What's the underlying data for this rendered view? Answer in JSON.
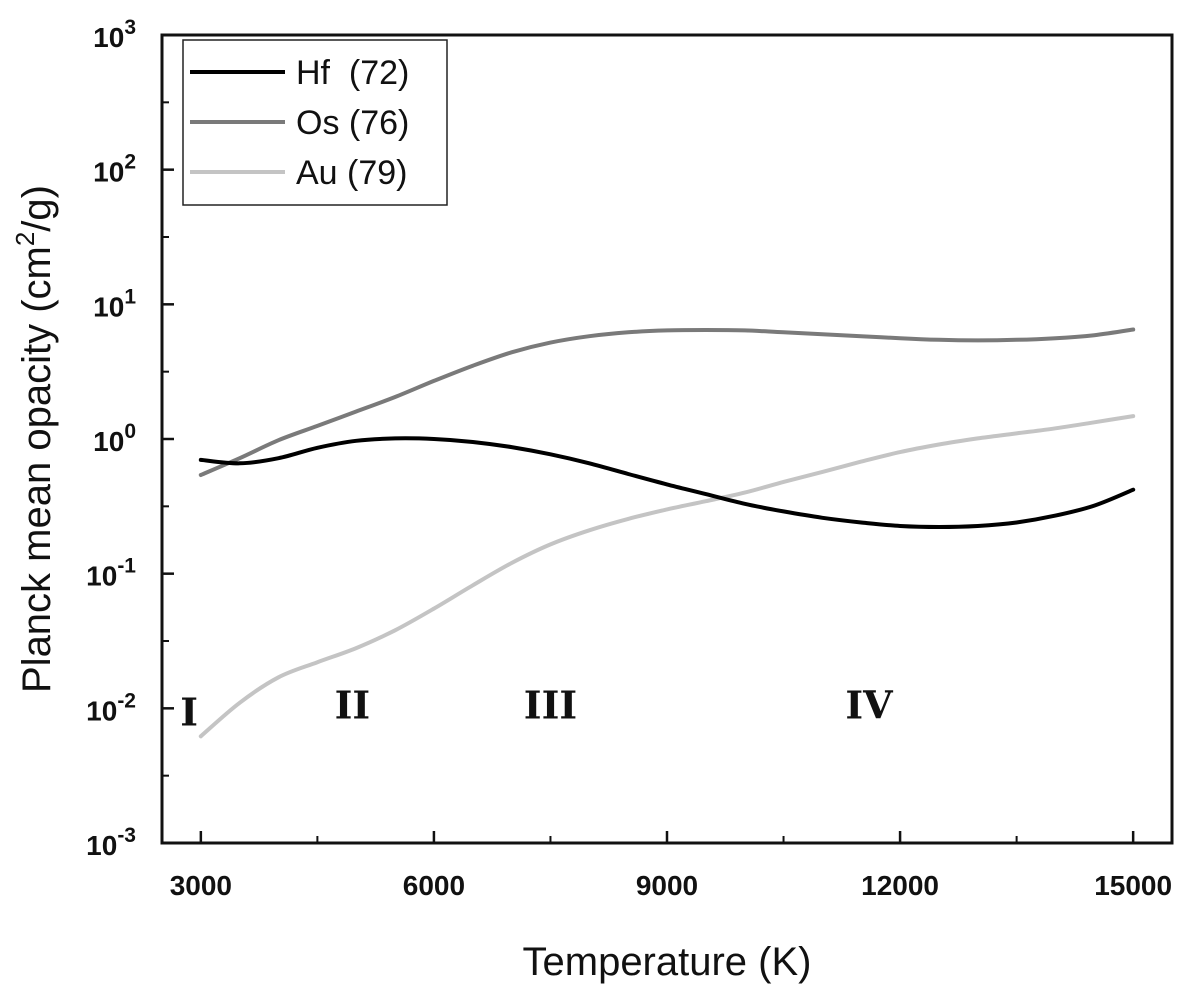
{
  "chart_data": {
    "type": "line",
    "xlabel": "Temperature (K)",
    "ylabel_main": "Planck mean opacity (cm",
    "ylabel_sup": "2",
    "ylabel_tail": "/g)",
    "xlim": [
      2500,
      15500
    ],
    "ylim": [
      0.001,
      1000
    ],
    "yscale": "log",
    "grid": false,
    "legend_position": "top-left",
    "x_ticks": [
      {
        "value": 3000,
        "label": "3000"
      },
      {
        "value": 6000,
        "label": "6000"
      },
      {
        "value": 9000,
        "label": "9000"
      },
      {
        "value": 12000,
        "label": "12000"
      },
      {
        "value": 15000,
        "label": "15000"
      }
    ],
    "y_ticks": [
      {
        "value": 0.001,
        "base": "10",
        "exp": "-3"
      },
      {
        "value": 0.01,
        "base": "10",
        "exp": "-2"
      },
      {
        "value": 0.1,
        "base": "10",
        "exp": "-1"
      },
      {
        "value": 1,
        "base": "10",
        "exp": "0"
      },
      {
        "value": 10,
        "base": "10",
        "exp": "1"
      },
      {
        "value": 100,
        "base": "10",
        "exp": "2"
      },
      {
        "value": 1000,
        "base": "10",
        "exp": "3"
      }
    ],
    "series": [
      {
        "name": "Hf  (72)",
        "color": "#000000",
        "x": [
          3000,
          3500,
          4000,
          4500,
          5000,
          5500,
          6000,
          6500,
          7000,
          7500,
          8000,
          8500,
          9000,
          9500,
          10000,
          10500,
          11000,
          11500,
          12000,
          12500,
          13000,
          13500,
          14000,
          14500,
          15000
        ],
        "y": [
          0.7,
          0.66,
          0.72,
          0.86,
          0.97,
          1.01,
          1.0,
          0.95,
          0.87,
          0.77,
          0.66,
          0.55,
          0.46,
          0.39,
          0.33,
          0.29,
          0.26,
          0.24,
          0.226,
          0.222,
          0.226,
          0.24,
          0.27,
          0.32,
          0.42
        ]
      },
      {
        "name": "Os (76)",
        "color": "#7a7a7a",
        "x": [
          3000,
          3500,
          4000,
          4500,
          5000,
          5500,
          6000,
          6500,
          7000,
          7500,
          8000,
          8500,
          9000,
          9500,
          10000,
          10500,
          11000,
          11500,
          12000,
          12500,
          13000,
          13500,
          14000,
          14500,
          15000
        ],
        "y": [
          0.54,
          0.72,
          0.98,
          1.25,
          1.6,
          2.05,
          2.7,
          3.5,
          4.4,
          5.2,
          5.8,
          6.2,
          6.4,
          6.45,
          6.4,
          6.2,
          6.0,
          5.8,
          5.6,
          5.45,
          5.4,
          5.45,
          5.6,
          5.9,
          6.5
        ]
      },
      {
        "name": "Au (79)",
        "color": "#c4c4c4",
        "x": [
          3000,
          3500,
          4000,
          4500,
          5000,
          5500,
          6000,
          6500,
          7000,
          7500,
          8000,
          8500,
          9000,
          9500,
          10000,
          10500,
          11000,
          11500,
          12000,
          12500,
          13000,
          13500,
          14000,
          14500,
          15000
        ],
        "y": [
          0.0062,
          0.011,
          0.017,
          0.022,
          0.028,
          0.038,
          0.055,
          0.082,
          0.12,
          0.165,
          0.21,
          0.255,
          0.3,
          0.345,
          0.4,
          0.48,
          0.57,
          0.68,
          0.8,
          0.91,
          1.01,
          1.1,
          1.2,
          1.33,
          1.48
        ]
      }
    ],
    "annotations": [
      {
        "text": "I",
        "x": 2850,
        "y": 0.0095
      },
      {
        "text": "II",
        "x": 4950,
        "y": 0.0107
      },
      {
        "text": "III",
        "x": 7500,
        "y": 0.0107
      },
      {
        "text": "IV",
        "x": 11600,
        "y": 0.0107
      }
    ]
  }
}
